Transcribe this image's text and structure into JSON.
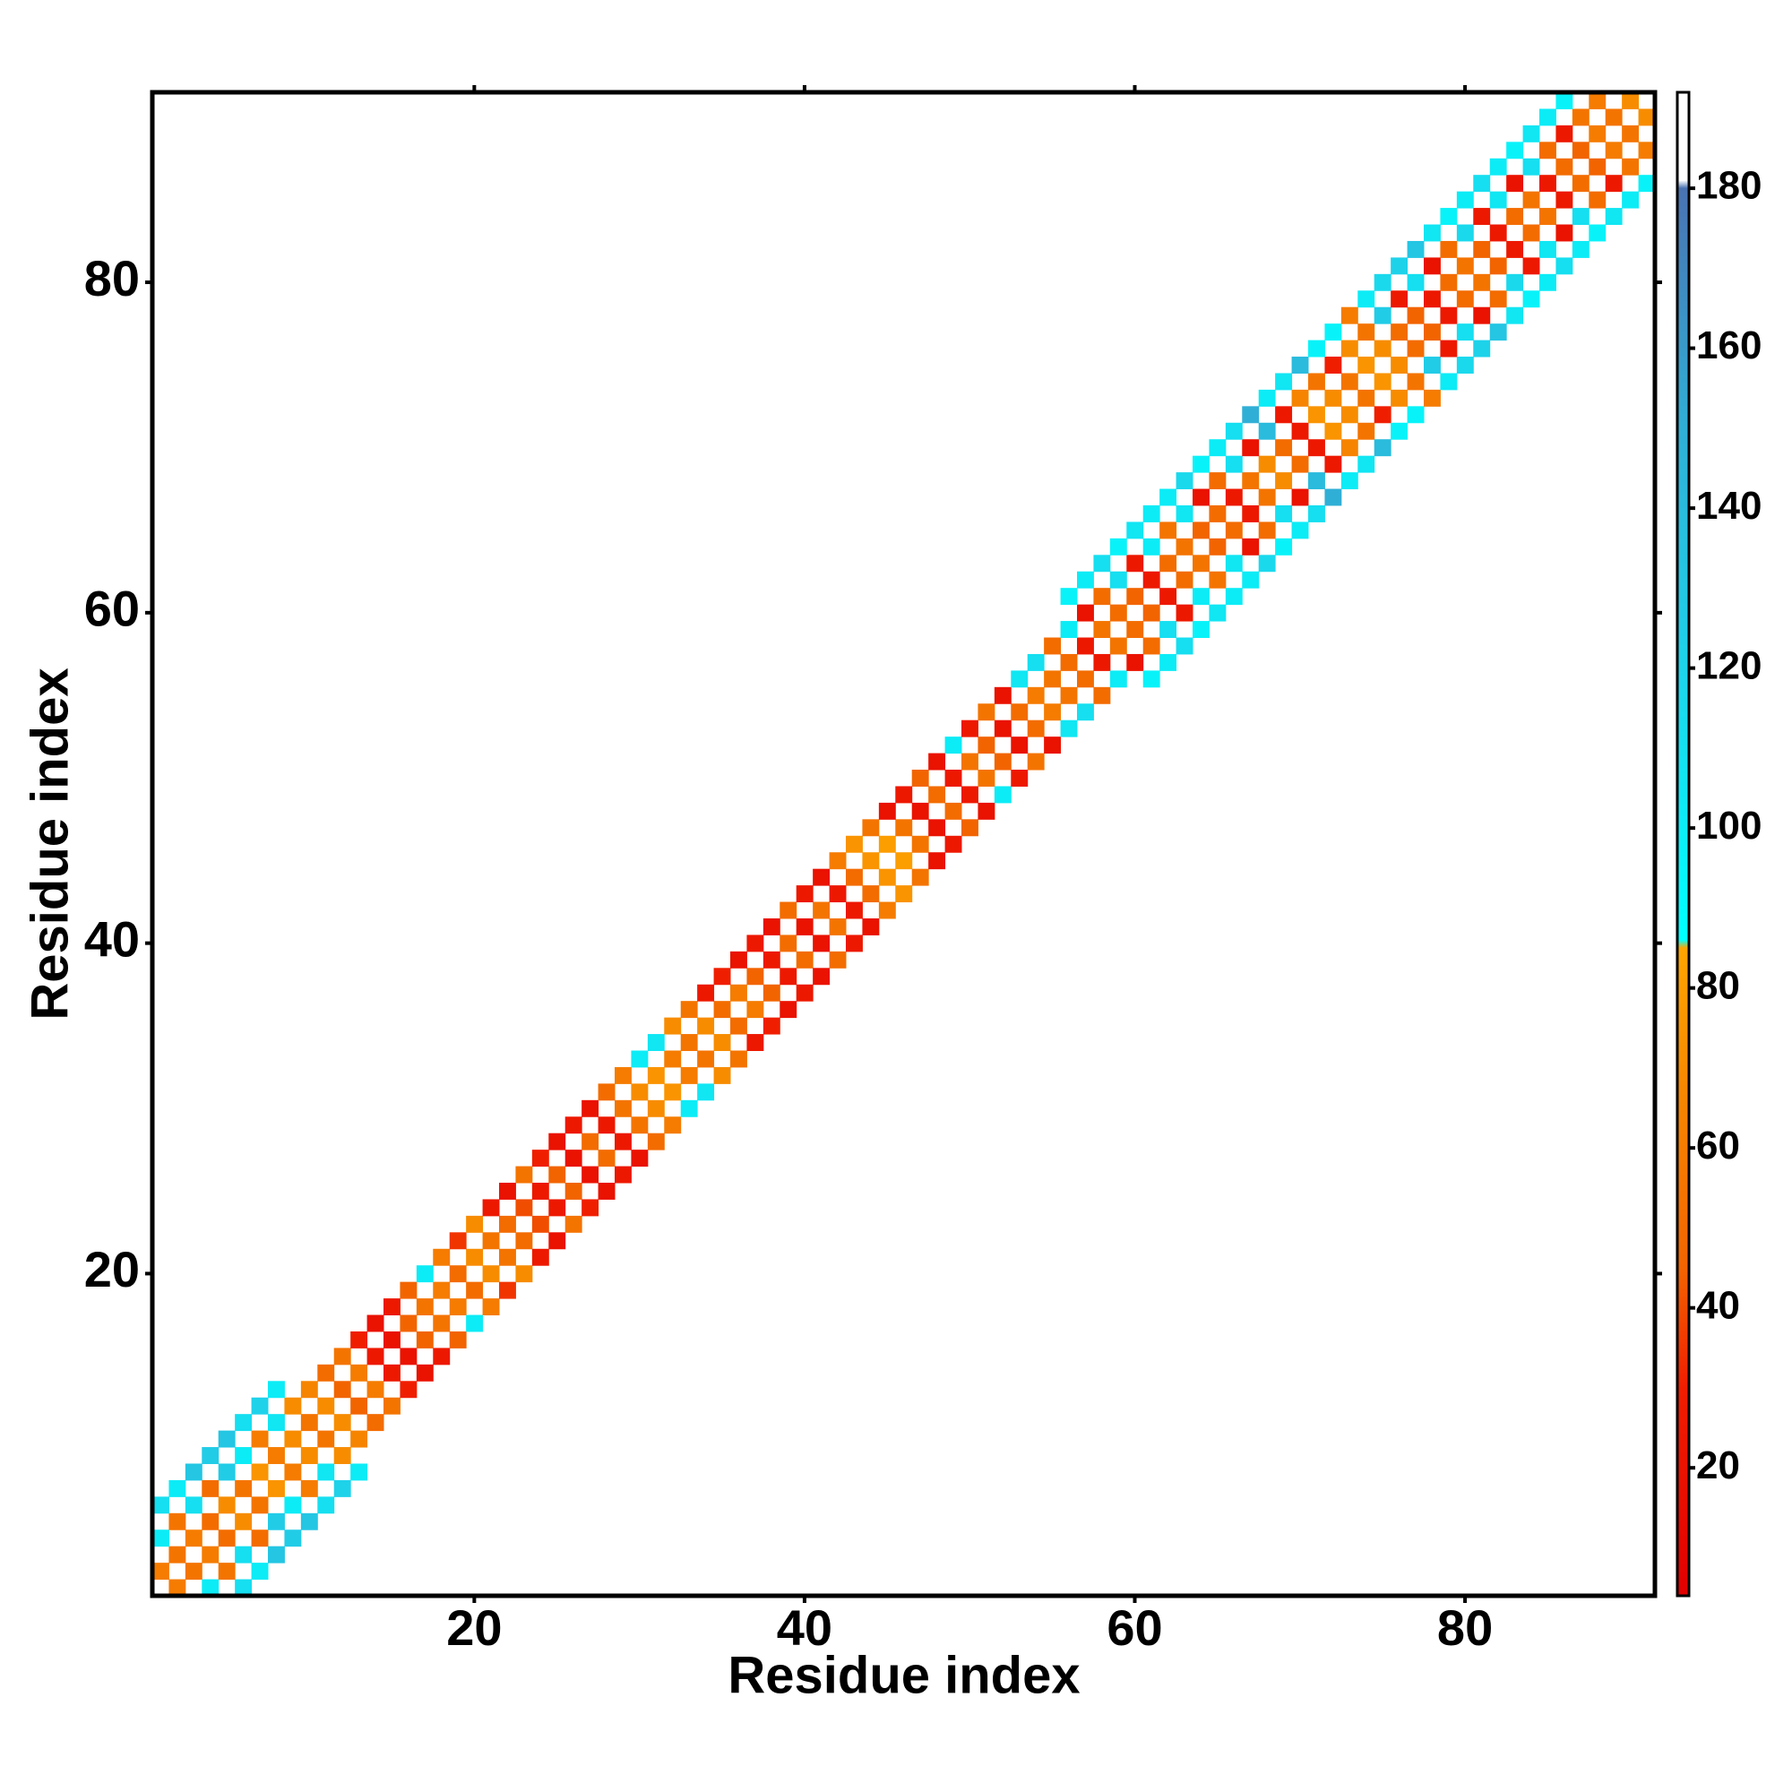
{
  "chart_data": {
    "type": "heatmap",
    "xlabel": "Residue index",
    "ylabel": "Residue index",
    "xlim": [
      0.5,
      91.5
    ],
    "ylim": [
      0.5,
      91.5
    ],
    "xticks": [
      20,
      40,
      60,
      80
    ],
    "yticks": [
      20,
      40,
      60,
      80
    ],
    "clim": [
      4,
      192
    ],
    "cticks": [
      20,
      40,
      60,
      80,
      100,
      120,
      140,
      160,
      180
    ],
    "colorscale": [
      [
        4,
        "#e00000"
      ],
      [
        30,
        "#f01e00"
      ],
      [
        45,
        "#f26400"
      ],
      [
        70,
        "#f78c00"
      ],
      [
        85,
        "#ffa500"
      ],
      [
        86,
        "#00ffff"
      ],
      [
        120,
        "#1ed2ea"
      ],
      [
        150,
        "#30afd6"
      ],
      [
        180,
        "#4a72b2"
      ],
      [
        181,
        "#ffffff"
      ],
      [
        192,
        "#ffffff"
      ]
    ],
    "symmetric": true,
    "x": [
      1,
      2,
      3,
      4,
      5,
      6,
      7,
      8,
      9,
      10,
      11,
      12,
      13,
      14,
      15,
      16,
      17,
      18,
      19,
      20,
      21,
      22,
      23,
      24,
      25,
      26,
      27,
      28,
      29,
      30,
      31,
      32,
      33,
      34,
      35,
      36,
      37,
      38,
      39,
      40,
      41,
      42,
      43,
      44,
      45,
      46,
      47,
      48,
      49,
      50,
      51,
      52,
      53,
      54,
      55,
      56,
      57,
      58,
      59,
      60,
      61,
      62,
      63,
      64,
      65,
      66,
      67,
      68,
      69,
      70,
      71,
      72,
      73,
      74,
      75,
      76,
      77,
      78,
      79,
      80,
      81,
      82,
      83,
      84,
      85,
      86,
      87,
      88,
      89,
      90,
      1,
      2,
      3,
      4,
      5,
      6,
      7,
      8,
      9,
      10,
      11,
      12,
      13,
      14,
      15,
      16,
      17,
      18,
      19,
      20,
      21,
      22,
      23,
      24,
      25,
      26,
      27,
      28,
      29,
      30,
      31,
      32,
      33,
      34,
      35,
      36,
      37,
      38,
      39,
      40,
      41,
      42,
      43,
      44,
      45,
      46,
      47,
      48,
      49,
      50,
      51,
      52,
      53,
      54,
      55,
      56,
      57,
      58,
      59,
      60,
      61,
      62,
      63,
      64,
      65,
      66,
      67,
      68,
      69,
      70,
      71,
      72,
      73,
      74,
      75,
      76,
      77,
      78,
      79,
      80,
      81,
      82,
      83,
      84,
      85,
      86,
      87,
      88,
      1,
      2,
      3,
      4,
      5,
      6,
      7,
      8,
      56,
      57,
      58,
      59,
      60,
      61,
      62,
      63,
      64,
      65,
      66,
      67,
      68,
      69,
      70,
      71,
      72,
      73,
      74,
      75,
      76,
      77,
      78,
      79,
      80,
      81,
      82,
      83,
      84,
      85,
      86
    ],
    "y": [
      2,
      3,
      4,
      5,
      6,
      7,
      8,
      9,
      10,
      11,
      12,
      13,
      14,
      15,
      16,
      17,
      18,
      19,
      20,
      21,
      22,
      23,
      24,
      25,
      26,
      27,
      28,
      29,
      30,
      31,
      32,
      33,
      34,
      35,
      36,
      37,
      38,
      39,
      40,
      41,
      42,
      43,
      44,
      45,
      46,
      47,
      48,
      49,
      50,
      51,
      52,
      53,
      54,
      55,
      56,
      57,
      58,
      59,
      60,
      61,
      62,
      63,
      64,
      65,
      66,
      67,
      68,
      69,
      70,
      71,
      72,
      73,
      74,
      75,
      76,
      77,
      78,
      79,
      80,
      81,
      82,
      83,
      84,
      85,
      86,
      87,
      88,
      89,
      90,
      91,
      4,
      5,
      6,
      7,
      8,
      9,
      10,
      11,
      12,
      13,
      14,
      15,
      16,
      17,
      18,
      19,
      20,
      21,
      22,
      23,
      24,
      25,
      26,
      27,
      28,
      29,
      30,
      31,
      32,
      33,
      34,
      35,
      36,
      37,
      38,
      39,
      40,
      41,
      42,
      43,
      44,
      45,
      46,
      47,
      48,
      49,
      50,
      51,
      52,
      53,
      54,
      55,
      56,
      57,
      58,
      59,
      60,
      61,
      62,
      63,
      64,
      65,
      66,
      67,
      68,
      69,
      70,
      71,
      72,
      73,
      74,
      75,
      76,
      77,
      78,
      79,
      80,
      81,
      82,
      83,
      84,
      85,
      86,
      87,
      88,
      89,
      90,
      91,
      6,
      7,
      8,
      9,
      10,
      11,
      12,
      13,
      61,
      62,
      63,
      64,
      65,
      66,
      67,
      68,
      69,
      70,
      71,
      72,
      73,
      74,
      75,
      76,
      77,
      78,
      79,
      80,
      81,
      82,
      83,
      84,
      85,
      86,
      87,
      88,
      89,
      90,
      91
    ],
    "values": [
      60,
      55,
      60,
      50,
      70,
      55,
      75,
      60,
      70,
      55,
      70,
      45,
      60,
      25,
      20,
      45,
      55,
      60,
      50,
      70,
      55,
      50,
      40,
      25,
      45,
      20,
      50,
      25,
      55,
      70,
      75,
      60,
      55,
      70,
      50,
      60,
      45,
      25,
      50,
      20,
      55,
      25,
      50,
      75,
      80,
      55,
      20,
      50,
      25,
      55,
      45,
      20,
      50,
      60,
      55,
      50,
      25,
      55,
      50,
      45,
      25,
      50,
      55,
      45,
      50,
      25,
      55,
      70,
      50,
      25,
      75,
      70,
      55,
      75,
      70,
      50,
      45,
      25,
      50,
      55,
      45,
      25,
      50,
      55,
      25,
      50,
      45,
      60,
      55,
      70,
      100,
      55,
      110,
      50,
      125,
      100,
      60,
      105,
      70,
      65,
      50,
      55,
      30,
      20,
      25,
      45,
      100,
      60,
      35,
      70,
      25,
      20,
      55,
      30,
      20,
      25,
      20,
      50,
      60,
      100,
      105,
      70,
      55,
      25,
      30,
      20,
      25,
      20,
      50,
      25,
      20,
      60,
      75,
      55,
      20,
      25,
      45,
      20,
      100,
      25,
      55,
      20,
      105,
      110,
      50,
      100,
      20,
      50,
      110,
      25,
      100,
      55,
      105,
      20,
      50,
      110,
      20,
      140,
      25,
      65,
      55,
      30,
      70,
      55,
      125,
      25,
      110,
      20,
      50,
      115,
      25,
      105,
      20,
      110,
      50,
      25,
      55,
      60,
      110,
      100,
      130,
      125,
      130,
      110,
      120,
      100,
      95,
      100,
      110,
      95,
      105,
      100,
      100,
      115,
      95,
      100,
      110,
      150,
      100,
      105,
      140,
      95,
      95,
      60,
      100,
      115,
      120,
      130,
      105,
      95,
      100,
      110,
      100,
      95,
      105,
      100,
      95
    ]
  }
}
